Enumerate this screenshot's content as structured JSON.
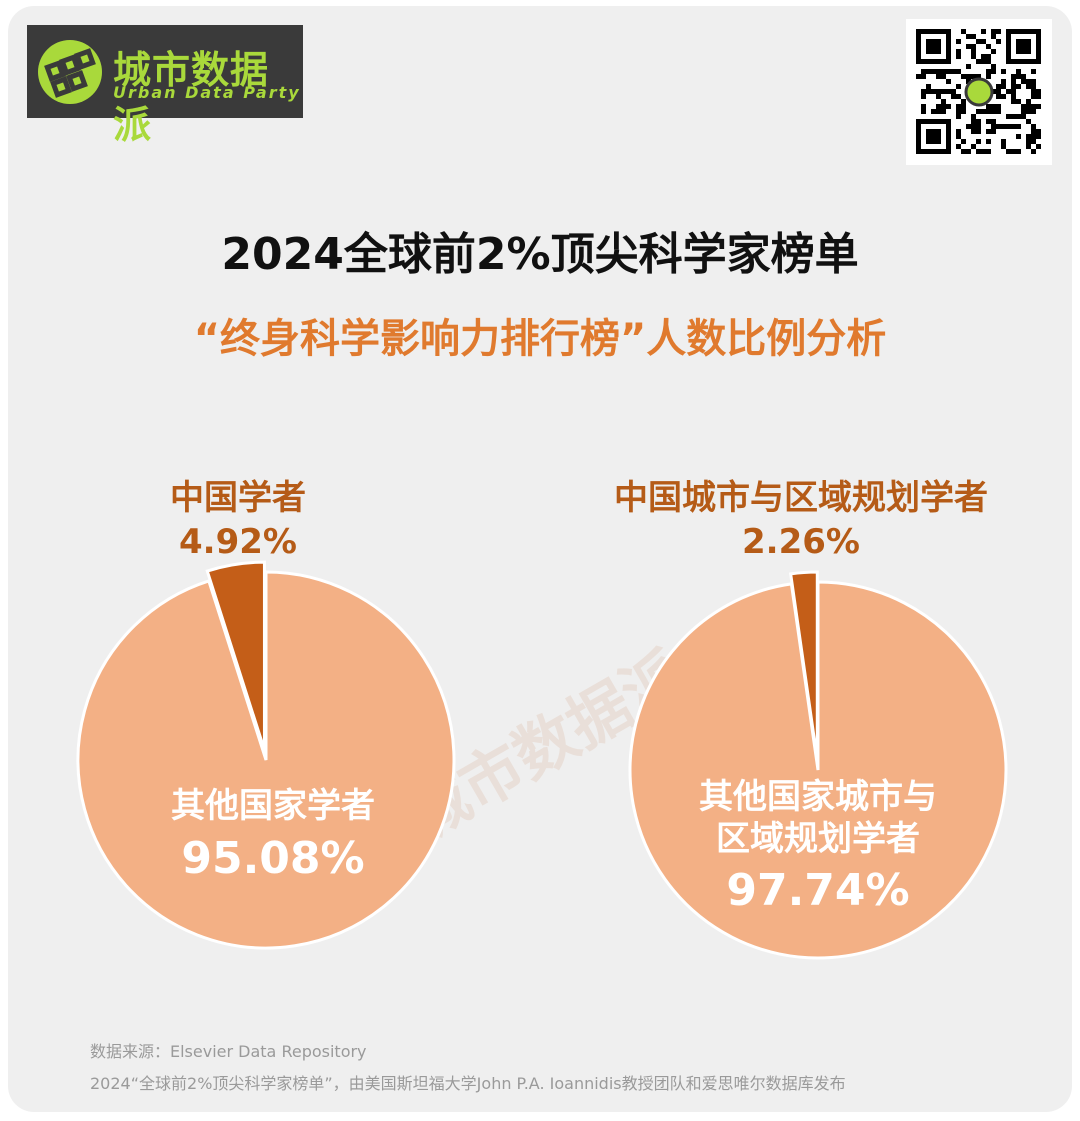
{
  "brand": {
    "name_cn": "城市数据派",
    "name_en": "Urban Data Party",
    "accent": "#a9d93b"
  },
  "header": {
    "title": "2024全球前2%顶尖科学家榜单",
    "subtitle": "“终身科学影响力排行榜”人数比例分析"
  },
  "colors": {
    "major_slice": "#f3b085",
    "minor_slice": "#c45e18",
    "minor_label": "#b55b17",
    "subtitle": "#e07a2e"
  },
  "chart_data": [
    {
      "type": "pie",
      "slices": [
        {
          "label": "中国学者",
          "value": 4.92,
          "display": "4.92%"
        },
        {
          "label": "其他国家学者",
          "value": 95.08,
          "display": "95.08%"
        }
      ]
    },
    {
      "type": "pie",
      "slices": [
        {
          "label": "中国城市与区域规划学者",
          "value": 2.26,
          "display": "2.26%"
        },
        {
          "label": "其他国家城市与\n区域规划学者",
          "value": 97.74,
          "display": "97.74%"
        }
      ]
    }
  ],
  "footer": {
    "source": "数据来源：Elsevier Data Repository",
    "note": "2024“全球前2%顶尖科学家榜单”，由美国斯坦福大学John P.A. Ioannidis教授团队和爱思唯尔数据库发布"
  }
}
